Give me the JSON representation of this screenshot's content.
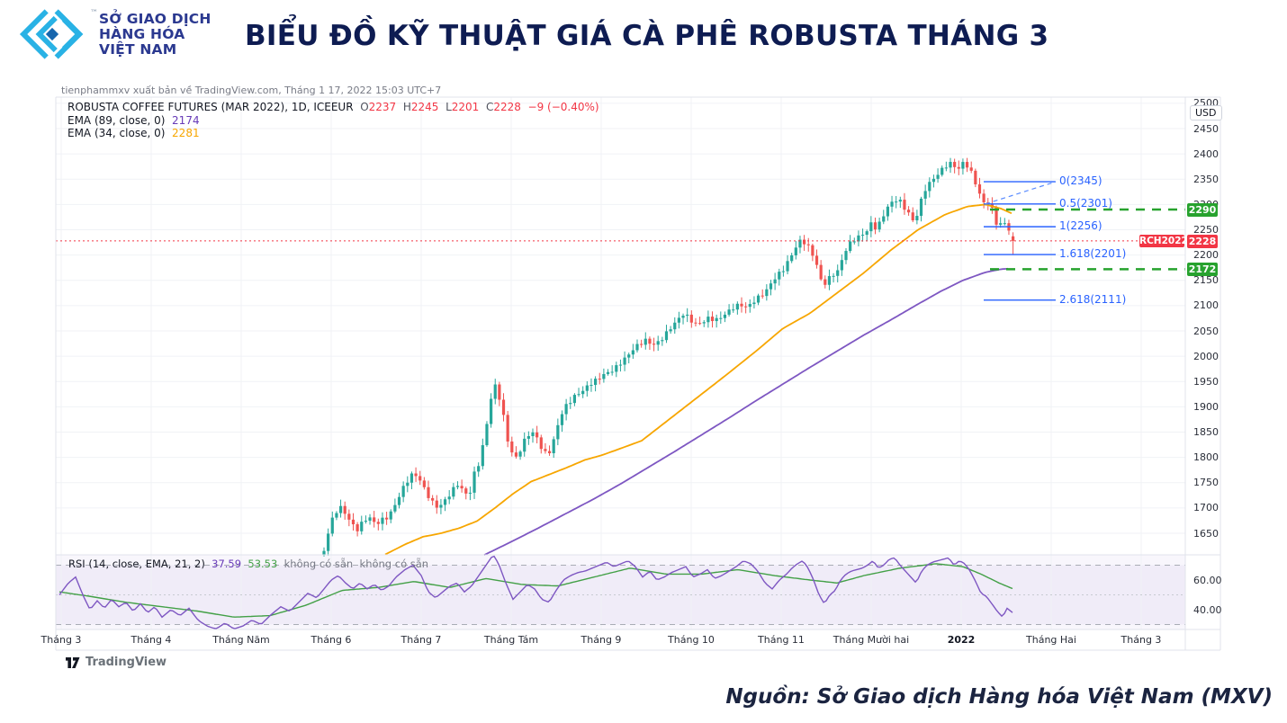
{
  "header": {
    "logo_line1": "SỞ GIAO DỊCH",
    "logo_line2": "HÀNG HÓA",
    "logo_line3": "VIỆT NAM",
    "trademark": "™",
    "title": "BIỂU ĐỒ KỸ THUẬT GIÁ CÀ PHÊ ROBUSTA THÁNG 3"
  },
  "attribution": "tienphammxv xuất bản về TradingView.com, Tháng 1 17, 2022 15:03 UTC+7",
  "legend": {
    "symbol": "ROBUSTA COFFEE FUTURES (MAR 2022), 1D, ICEEUR",
    "o_label": "O",
    "o_value": "2237",
    "h_label": "H",
    "h_value": "2245",
    "l_label": "L",
    "l_value": "2201",
    "c_label": "C",
    "c_value": "2228",
    "change": "−9 (−0.40%)",
    "ema89_label": "EMA (89, close, 0)",
    "ema89_value": "2174",
    "ema34_label": "EMA (34, close, 0)",
    "ema34_value": "2281"
  },
  "rsi_legend": {
    "label": "RSI (14, close, EMA, 21, 2)",
    "rsi_value": "37.59",
    "rsi_ema_value": "53.53",
    "na1": "không có sẵn",
    "na2": "không có sẵn"
  },
  "axis": {
    "currency_badge": "USD",
    "price_ticks": [
      2500,
      2450,
      2400,
      2350,
      2300,
      2250,
      2200,
      2150,
      2100,
      2050,
      2000,
      1950,
      1900,
      1850,
      1800,
      1750,
      1700,
      1650
    ],
    "rsi_ticks": [
      {
        "label": "60.00",
        "value": 60
      },
      {
        "label": "40.00",
        "value": 40
      }
    ],
    "time_labels": [
      {
        "label": "Tháng 3",
        "bold": false
      },
      {
        "label": "Tháng 4",
        "bold": false
      },
      {
        "label": "Tháng Năm",
        "bold": false
      },
      {
        "label": "Tháng 6",
        "bold": false
      },
      {
        "label": "Tháng 7",
        "bold": false
      },
      {
        "label": "Tháng Tám",
        "bold": false
      },
      {
        "label": "Tháng 9",
        "bold": false
      },
      {
        "label": "Tháng 10",
        "bold": false
      },
      {
        "label": "Tháng 11",
        "bold": false
      },
      {
        "label": "Tháng Mười hai",
        "bold": false
      },
      {
        "label": "2022",
        "bold": true
      },
      {
        "label": "Tháng Hai",
        "bold": false
      },
      {
        "label": "Tháng 3",
        "bold": false
      }
    ]
  },
  "badges": {
    "resistance": "2290",
    "price_line_label": "RCH2022",
    "price_line_value": "2228",
    "support": "2172"
  },
  "footer": {
    "source": "Nguồn: Sở Giao dịch Hàng hóa Việt Nam (MXV)",
    "tradingview": "TradingView"
  },
  "colors": {
    "up": "#26a69a",
    "down": "#ef5350",
    "ema34": "#f7a600",
    "ema89": "#7e57c2",
    "fib_blue": "#2962ff",
    "sr_green": "#27a22e",
    "price_line_red": "#f23645",
    "rsi_line": "#7e57c2",
    "rsi_ema_line": "#43a047",
    "grid": "#f0f2f6",
    "border": "#e0e3eb",
    "brand_navy": "#0e1c52",
    "logo_cyan": "#29b2e5",
    "logo_blue": "#2b3990"
  },
  "chart_data": {
    "type": "candlestick",
    "title": "ROBUSTA COFFEE FUTURES (MAR 2022), 1D, ICEEUR",
    "interval": "1D",
    "currency": "USD",
    "last_ohlc": {
      "open": 2237,
      "high": 2245,
      "low": 2201,
      "close": 2228,
      "change": "−9 (−0.40%)"
    },
    "price_axis_range": [
      1607,
      2512
    ],
    "rsi_axis_range": [
      26,
      77
    ],
    "rsi_bands": [
      70,
      50,
      30
    ],
    "rsi_last": {
      "rsi": 37.59,
      "rsi_ema": 53.53
    },
    "ema": [
      {
        "name": "EMA 89",
        "last": 2174
      },
      {
        "name": "EMA 34",
        "last": 2281
      }
    ],
    "fib_levels": [
      {
        "label": "0(2345)",
        "price": 2345
      },
      {
        "label": "0.5(2301)",
        "price": 2301
      },
      {
        "label": "1(2256)",
        "price": 2256
      },
      {
        "label": "1.618(2201)",
        "price": 2201
      },
      {
        "label": "2.618(2111)",
        "price": 2111
      }
    ],
    "fib_trend_dashed": {
      "from_price": 2301,
      "to_price": 2345
    },
    "support_resistance": [
      {
        "price": 2290,
        "badge": "2290"
      },
      {
        "price": 2172,
        "badge": "2172"
      }
    ],
    "futures_price_line": {
      "label": "RCH2022",
      "price": 2228
    },
    "close_keypoints": [
      [
        360,
        1615
      ],
      [
        366,
        1662
      ],
      [
        372,
        1690
      ],
      [
        378,
        1702
      ],
      [
        384,
        1688
      ],
      [
        390,
        1672
      ],
      [
        396,
        1655
      ],
      [
        403,
        1672
      ],
      [
        410,
        1683
      ],
      [
        417,
        1668
      ],
      [
        424,
        1676
      ],
      [
        431,
        1682
      ],
      [
        438,
        1702
      ],
      [
        445,
        1730
      ],
      [
        452,
        1752
      ],
      [
        459,
        1769
      ],
      [
        466,
        1758
      ],
      [
        473,
        1732
      ],
      [
        480,
        1712
      ],
      [
        487,
        1700
      ],
      [
        494,
        1714
      ],
      [
        501,
        1730
      ],
      [
        508,
        1748
      ],
      [
        515,
        1733
      ],
      [
        521,
        1722
      ],
      [
        527,
        1768
      ],
      [
        533,
        1792
      ],
      [
        539,
        1845
      ],
      [
        545,
        1912
      ],
      [
        549,
        1946
      ],
      [
        553,
        1930
      ],
      [
        558,
        1898
      ],
      [
        563,
        1840
      ],
      [
        568,
        1812
      ],
      [
        573,
        1798
      ],
      [
        579,
        1818
      ],
      [
        585,
        1842
      ],
      [
        591,
        1850
      ],
      [
        597,
        1838
      ],
      [
        603,
        1812
      ],
      [
        609,
        1805
      ],
      [
        615,
        1832
      ],
      [
        621,
        1872
      ],
      [
        627,
        1898
      ],
      [
        634,
        1912
      ],
      [
        641,
        1925
      ],
      [
        648,
        1932
      ],
      [
        655,
        1945
      ],
      [
        662,
        1952
      ],
      [
        669,
        1962
      ],
      [
        676,
        1968
      ],
      [
        683,
        1975
      ],
      [
        690,
        1988
      ],
      [
        697,
        2000
      ],
      [
        704,
        2015
      ],
      [
        711,
        2025
      ],
      [
        718,
        2032
      ],
      [
        725,
        2022
      ],
      [
        732,
        2028
      ],
      [
        739,
        2042
      ],
      [
        746,
        2058
      ],
      [
        753,
        2072
      ],
      [
        760,
        2085
      ],
      [
        767,
        2072
      ],
      [
        774,
        2062
      ],
      [
        781,
        2068
      ],
      [
        788,
        2076
      ],
      [
        795,
        2071
      ],
      [
        802,
        2078
      ],
      [
        809,
        2088
      ],
      [
        816,
        2098
      ],
      [
        823,
        2102
      ],
      [
        830,
        2096
      ],
      [
        837,
        2108
      ],
      [
        844,
        2118
      ],
      [
        851,
        2128
      ],
      [
        858,
        2148
      ],
      [
        865,
        2162
      ],
      [
        872,
        2175
      ],
      [
        878,
        2195
      ],
      [
        884,
        2215
      ],
      [
        890,
        2230
      ],
      [
        896,
        2222
      ],
      [
        902,
        2205
      ],
      [
        908,
        2178
      ],
      [
        914,
        2138
      ],
      [
        920,
        2152
      ],
      [
        926,
        2162
      ],
      [
        932,
        2170
      ],
      [
        938,
        2205
      ],
      [
        944,
        2222
      ],
      [
        950,
        2232
      ],
      [
        956,
        2238
      ],
      [
        962,
        2245
      ],
      [
        968,
        2262
      ],
      [
        974,
        2252
      ],
      [
        980,
        2272
      ],
      [
        986,
        2295
      ],
      [
        992,
        2305
      ],
      [
        998,
        2312
      ],
      [
        1004,
        2295
      ],
      [
        1010,
        2282
      ],
      [
        1016,
        2262
      ],
      [
        1022,
        2300
      ],
      [
        1028,
        2330
      ],
      [
        1034,
        2345
      ],
      [
        1040,
        2356
      ],
      [
        1046,
        2368
      ],
      [
        1052,
        2378
      ],
      [
        1058,
        2382
      ],
      [
        1064,
        2368
      ],
      [
        1070,
        2382
      ],
      [
        1076,
        2375
      ],
      [
        1082,
        2352
      ],
      [
        1088,
        2322
      ],
      [
        1094,
        2300
      ],
      [
        1099,
        2306
      ],
      [
        1104,
        2282
      ],
      [
        1109,
        2252
      ],
      [
        1114,
        2268
      ],
      [
        1119,
        2258
      ],
      [
        1123,
        2242
      ],
      [
        1126,
        2228
      ]
    ],
    "ema34_keypoints": [
      [
        428,
        1608
      ],
      [
        450,
        1628
      ],
      [
        470,
        1643
      ],
      [
        490,
        1650
      ],
      [
        510,
        1660
      ],
      [
        530,
        1674
      ],
      [
        550,
        1700
      ],
      [
        570,
        1728
      ],
      [
        590,
        1752
      ],
      [
        610,
        1766
      ],
      [
        630,
        1780
      ],
      [
        650,
        1795
      ],
      [
        670,
        1805
      ],
      [
        713,
        1833
      ],
      [
        760,
        1898
      ],
      [
        807,
        1963
      ],
      [
        840,
        2010
      ],
      [
        870,
        2055
      ],
      [
        900,
        2085
      ],
      [
        930,
        2125
      ],
      [
        960,
        2165
      ],
      [
        990,
        2210
      ],
      [
        1020,
        2250
      ],
      [
        1050,
        2280
      ],
      [
        1075,
        2296
      ],
      [
        1095,
        2300
      ],
      [
        1112,
        2292
      ],
      [
        1126,
        2281
      ]
    ],
    "ema89_keypoints": [
      [
        538,
        1607
      ],
      [
        570,
        1635
      ],
      [
        600,
        1662
      ],
      [
        630,
        1690
      ],
      [
        660,
        1718
      ],
      [
        690,
        1748
      ],
      [
        720,
        1780
      ],
      [
        750,
        1812
      ],
      [
        780,
        1845
      ],
      [
        810,
        1878
      ],
      [
        840,
        1912
      ],
      [
        870,
        1945
      ],
      [
        900,
        1978
      ],
      [
        930,
        2010
      ],
      [
        960,
        2042
      ],
      [
        990,
        2072
      ],
      [
        1020,
        2103
      ],
      [
        1045,
        2128
      ],
      [
        1070,
        2150
      ],
      [
        1095,
        2166
      ],
      [
        1112,
        2172
      ],
      [
        1120,
        2173
      ]
    ],
    "rsi_keypoints": [
      [
        66,
        50
      ],
      [
        76,
        58
      ],
      [
        84,
        62
      ],
      [
        92,
        50
      ],
      [
        100,
        40
      ],
      [
        108,
        46
      ],
      [
        116,
        41
      ],
      [
        124,
        47
      ],
      [
        132,
        42
      ],
      [
        140,
        45
      ],
      [
        148,
        39
      ],
      [
        156,
        44
      ],
      [
        164,
        38
      ],
      [
        172,
        42
      ],
      [
        180,
        35
      ],
      [
        190,
        40
      ],
      [
        200,
        36
      ],
      [
        210,
        41
      ],
      [
        220,
        33
      ],
      [
        230,
        29
      ],
      [
        240,
        27
      ],
      [
        250,
        31
      ],
      [
        260,
        27
      ],
      [
        270,
        29
      ],
      [
        280,
        33
      ],
      [
        290,
        30
      ],
      [
        300,
        36
      ],
      [
        312,
        42
      ],
      [
        322,
        39
      ],
      [
        332,
        45
      ],
      [
        342,
        51
      ],
      [
        352,
        48
      ],
      [
        360,
        54
      ],
      [
        368,
        60
      ],
      [
        376,
        63
      ],
      [
        384,
        58
      ],
      [
        392,
        54
      ],
      [
        400,
        58
      ],
      [
        408,
        54
      ],
      [
        416,
        57
      ],
      [
        424,
        53
      ],
      [
        432,
        56
      ],
      [
        440,
        62
      ],
      [
        450,
        67
      ],
      [
        459,
        70
      ],
      [
        468,
        63
      ],
      [
        476,
        52
      ],
      [
        484,
        48
      ],
      [
        492,
        52
      ],
      [
        500,
        56
      ],
      [
        508,
        58
      ],
      [
        516,
        52
      ],
      [
        524,
        56
      ],
      [
        532,
        63
      ],
      [
        540,
        70
      ],
      [
        548,
        77
      ],
      [
        554,
        71
      ],
      [
        562,
        58
      ],
      [
        570,
        47
      ],
      [
        578,
        52
      ],
      [
        586,
        57
      ],
      [
        594,
        54
      ],
      [
        602,
        47
      ],
      [
        610,
        45
      ],
      [
        618,
        53
      ],
      [
        626,
        60
      ],
      [
        634,
        63
      ],
      [
        642,
        65
      ],
      [
        650,
        66
      ],
      [
        658,
        68
      ],
      [
        666,
        70
      ],
      [
        674,
        72
      ],
      [
        682,
        69
      ],
      [
        690,
        71
      ],
      [
        698,
        73
      ],
      [
        706,
        69
      ],
      [
        714,
        62
      ],
      [
        722,
        66
      ],
      [
        730,
        60
      ],
      [
        738,
        62
      ],
      [
        746,
        65
      ],
      [
        754,
        67
      ],
      [
        762,
        69
      ],
      [
        770,
        62
      ],
      [
        778,
        64
      ],
      [
        786,
        67
      ],
      [
        794,
        61
      ],
      [
        802,
        63
      ],
      [
        810,
        66
      ],
      [
        818,
        69
      ],
      [
        826,
        73
      ],
      [
        834,
        71
      ],
      [
        842,
        66
      ],
      [
        850,
        58
      ],
      [
        858,
        54
      ],
      [
        866,
        60
      ],
      [
        874,
        64
      ],
      [
        880,
        68
      ],
      [
        886,
        71
      ],
      [
        892,
        73
      ],
      [
        898,
        68
      ],
      [
        904,
        60
      ],
      [
        910,
        50
      ],
      [
        916,
        44
      ],
      [
        922,
        50
      ],
      [
        928,
        53
      ],
      [
        934,
        60
      ],
      [
        940,
        64
      ],
      [
        946,
        66
      ],
      [
        952,
        67
      ],
      [
        958,
        68
      ],
      [
        964,
        70
      ],
      [
        970,
        73
      ],
      [
        976,
        68
      ],
      [
        982,
        70
      ],
      [
        988,
        74
      ],
      [
        994,
        75
      ],
      [
        1000,
        70
      ],
      [
        1006,
        66
      ],
      [
        1012,
        62
      ],
      [
        1018,
        58
      ],
      [
        1024,
        66
      ],
      [
        1030,
        70
      ],
      [
        1036,
        72
      ],
      [
        1042,
        73
      ],
      [
        1048,
        74
      ],
      [
        1054,
        75
      ],
      [
        1060,
        70
      ],
      [
        1066,
        73
      ],
      [
        1072,
        71
      ],
      [
        1078,
        66
      ],
      [
        1084,
        59
      ],
      [
        1090,
        51
      ],
      [
        1096,
        49
      ],
      [
        1102,
        44
      ],
      [
        1108,
        39
      ],
      [
        1114,
        35
      ],
      [
        1119,
        41
      ],
      [
        1123,
        39
      ],
      [
        1126,
        37.6
      ]
    ],
    "rsi_ema_keypoints": [
      [
        66,
        52
      ],
      [
        100,
        49
      ],
      [
        140,
        45
      ],
      [
        180,
        42
      ],
      [
        220,
        39
      ],
      [
        260,
        35
      ],
      [
        300,
        36
      ],
      [
        340,
        43
      ],
      [
        380,
        53
      ],
      [
        420,
        55
      ],
      [
        460,
        59
      ],
      [
        500,
        55
      ],
      [
        540,
        61
      ],
      [
        580,
        57
      ],
      [
        620,
        56
      ],
      [
        660,
        62
      ],
      [
        700,
        68
      ],
      [
        740,
        64
      ],
      [
        780,
        64
      ],
      [
        820,
        67
      ],
      [
        860,
        63
      ],
      [
        900,
        60
      ],
      [
        930,
        58
      ],
      [
        960,
        63
      ],
      [
        1000,
        68
      ],
      [
        1040,
        71
      ],
      [
        1070,
        69
      ],
      [
        1090,
        64
      ],
      [
        1110,
        58
      ],
      [
        1126,
        54
      ]
    ]
  }
}
